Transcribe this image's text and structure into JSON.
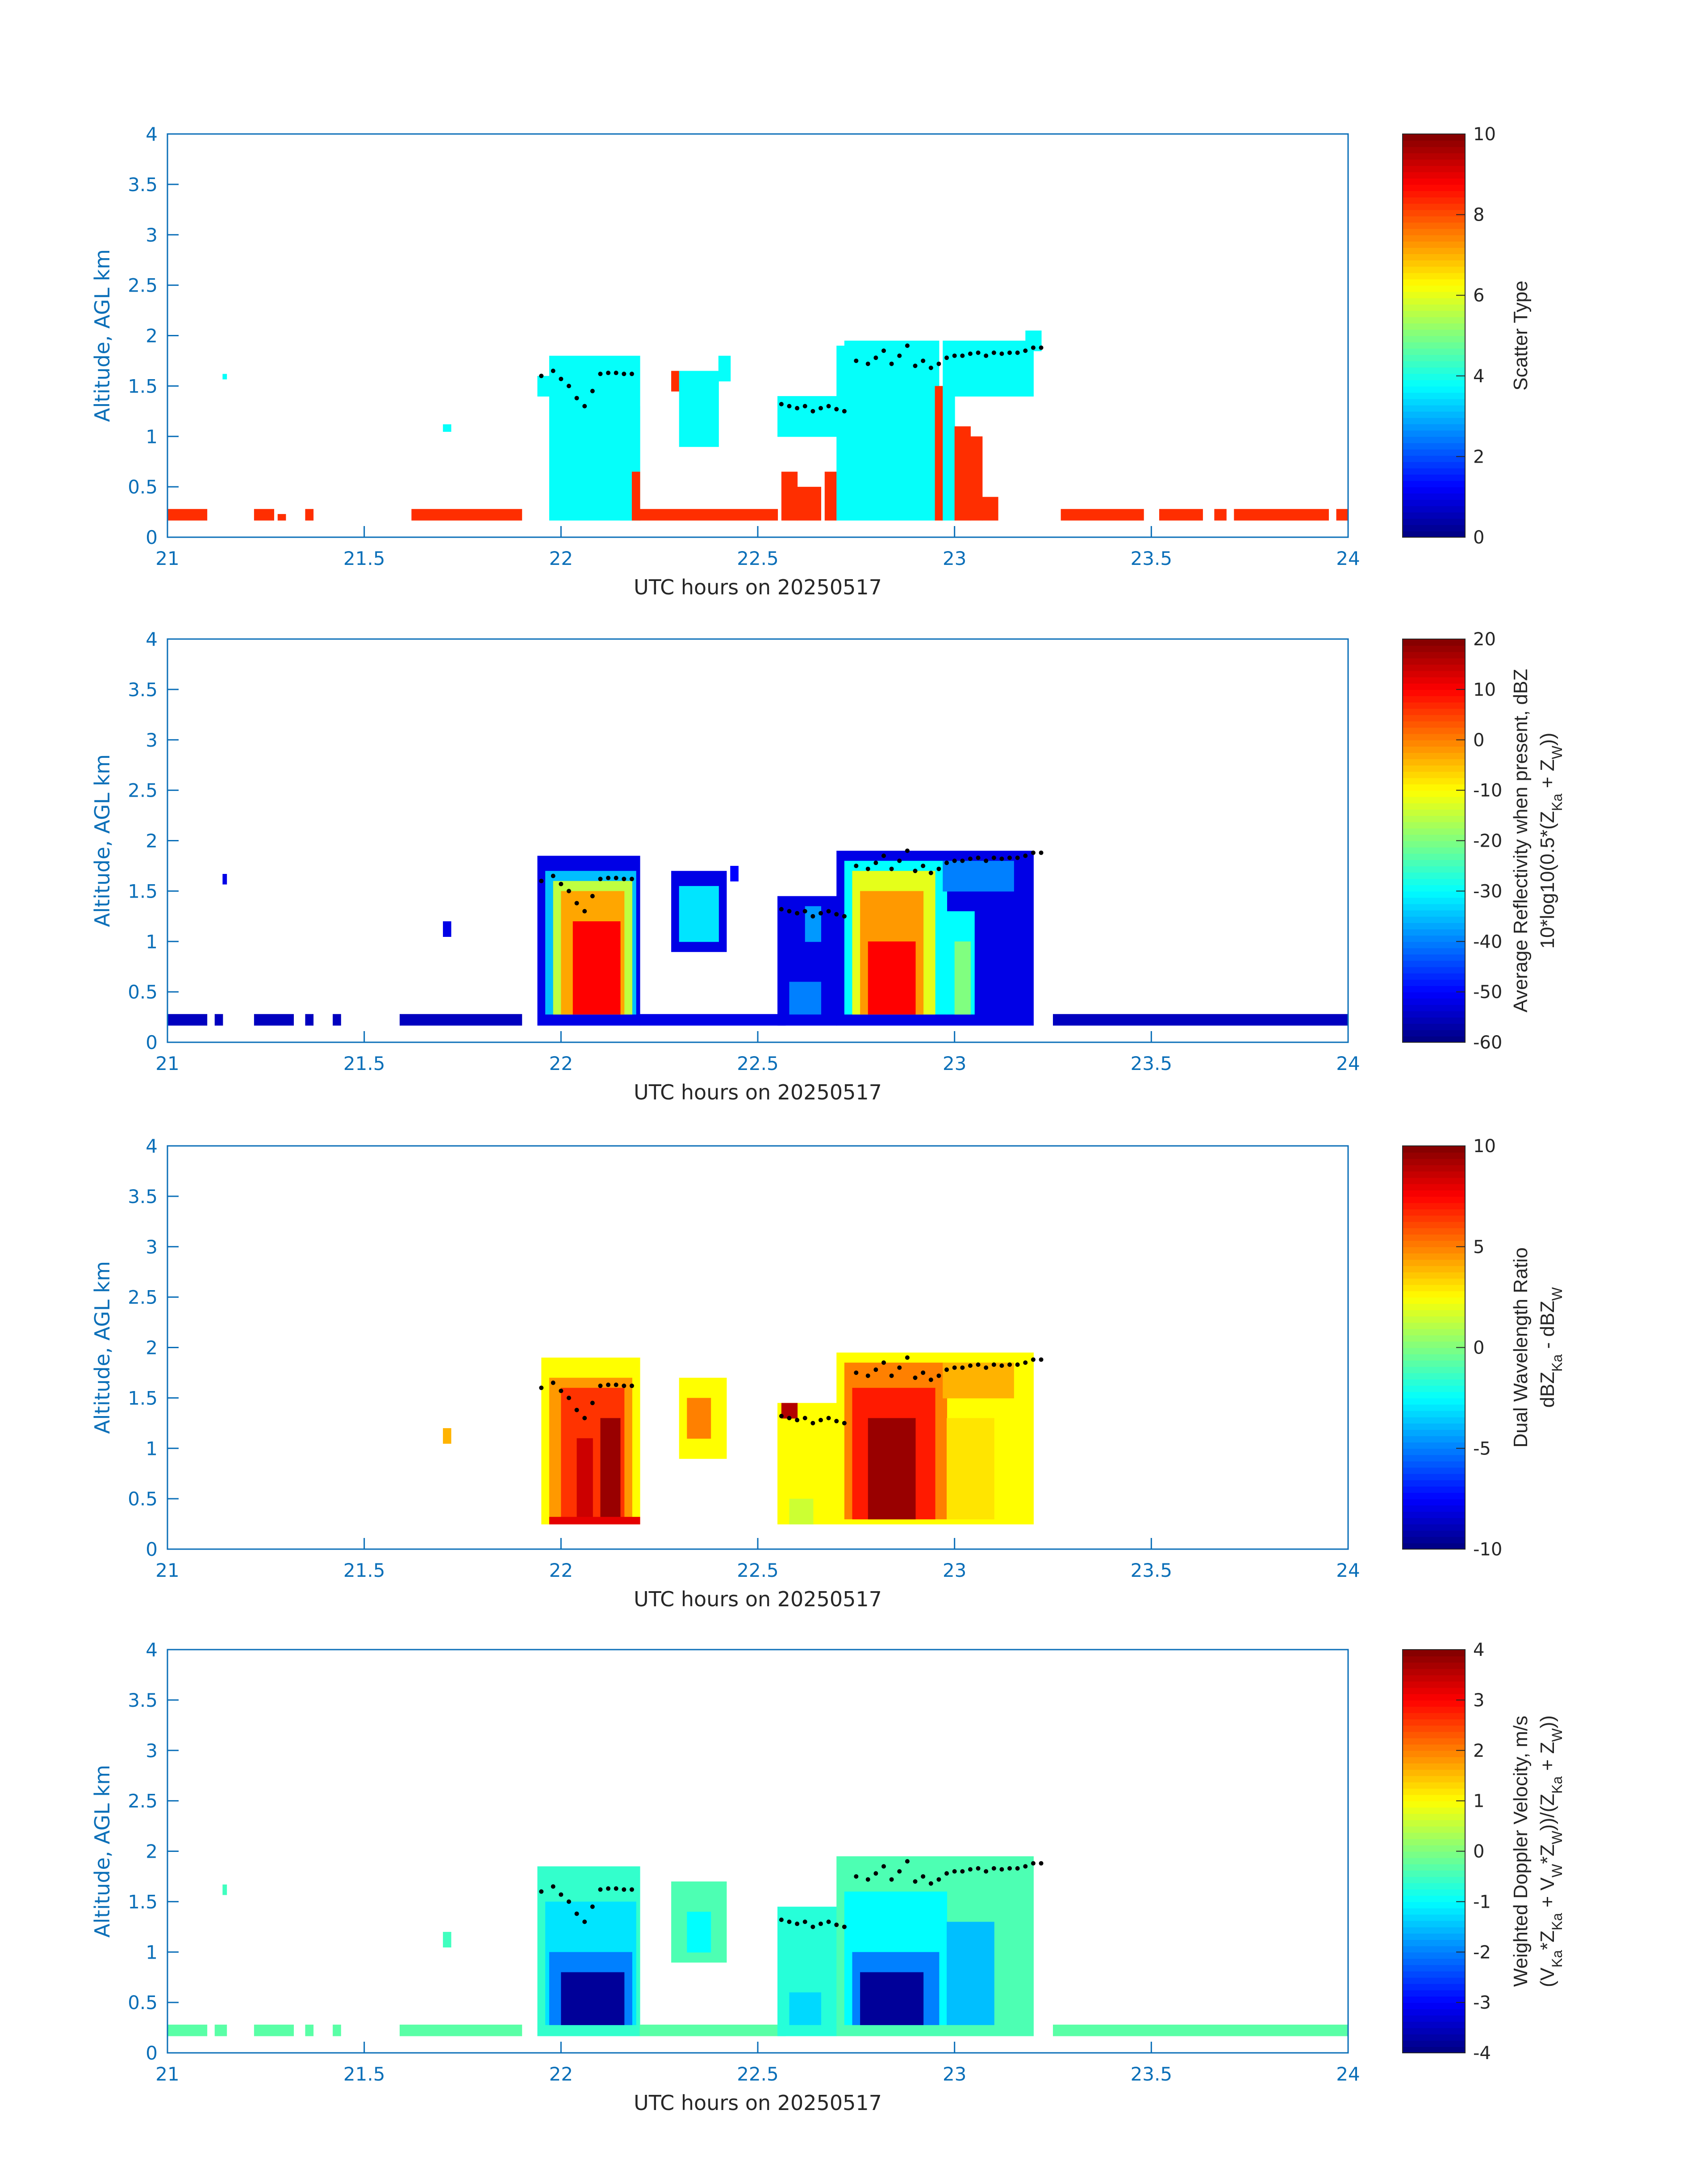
{
  "colors": {
    "axis": "#0b6fb8",
    "text": "#262626",
    "dots": "#000000"
  },
  "chart_data": [
    {
      "type": "heatmap",
      "title": "",
      "xlabel": "UTC hours on 20250517",
      "ylabel": "Altitude, AGL km",
      "xlim": [
        21,
        24
      ],
      "ylim": [
        0,
        4
      ],
      "xticks": [
        "21",
        "21.5",
        "22",
        "22.5",
        "23",
        "23.5",
        "24"
      ],
      "yticks": [
        "0",
        "0.5",
        "1",
        "1.5",
        "2",
        "2.5",
        "3",
        "3.5",
        "4"
      ],
      "colorbar": {
        "range": [
          0,
          10
        ],
        "ticks": [
          "0",
          "2",
          "4",
          "6",
          "8",
          "10"
        ],
        "label": [
          [
            {
              "t": "Scatter Type"
            }
          ]
        ]
      },
      "blocks_format": "[t_start_hr, t_end_hr, alt_bottom_km, alt_top_km, value]",
      "blocks": [
        [
          21.0,
          21.1,
          0.17,
          0.28,
          8.3
        ],
        [
          21.22,
          21.27,
          0.17,
          0.28,
          8.3
        ],
        [
          21.28,
          21.3,
          0.17,
          0.23,
          8.3
        ],
        [
          21.35,
          21.37,
          0.17,
          0.28,
          8.3
        ],
        [
          21.62,
          21.9,
          0.17,
          0.28,
          8.3
        ],
        [
          21.14,
          21.15,
          1.57,
          1.62,
          3.8
        ],
        [
          21.7,
          21.72,
          1.05,
          1.12,
          3.8
        ],
        [
          21.94,
          21.97,
          1.4,
          1.6,
          3.8
        ],
        [
          21.97,
          22.2,
          0.17,
          1.8,
          3.8
        ],
        [
          22.15,
          22.2,
          0.17,
          1.3,
          3.8
        ],
        [
          22.18,
          22.2,
          0.17,
          0.65,
          8.3
        ],
        [
          22.2,
          22.55,
          0.17,
          0.28,
          8.3
        ],
        [
          22.28,
          22.32,
          1.45,
          1.65,
          8.3
        ],
        [
          22.3,
          22.4,
          0.9,
          1.65,
          3.8
        ],
        [
          22.4,
          22.43,
          1.55,
          1.8,
          3.8
        ],
        [
          22.55,
          22.72,
          1.0,
          1.4,
          3.8
        ],
        [
          22.56,
          22.6,
          0.17,
          0.65,
          8.3
        ],
        [
          22.6,
          22.66,
          0.17,
          0.5,
          8.3
        ],
        [
          22.58,
          22.62,
          0.28,
          0.45,
          8.3
        ],
        [
          22.67,
          22.7,
          0.17,
          0.65,
          8.3
        ],
        [
          22.7,
          22.95,
          0.17,
          1.9,
          3.8
        ],
        [
          22.72,
          22.96,
          1.5,
          1.95,
          3.8
        ],
        [
          22.95,
          22.97,
          0.17,
          1.5,
          8.3
        ],
        [
          22.97,
          23.0,
          0.17,
          1.95,
          3.8
        ],
        [
          23.0,
          23.04,
          0.17,
          1.1,
          8.3
        ],
        [
          23.04,
          23.07,
          0.17,
          1.0,
          8.3
        ],
        [
          23.07,
          23.11,
          0.17,
          0.4,
          8.3
        ],
        [
          23.0,
          23.2,
          1.4,
          1.95,
          3.8
        ],
        [
          23.18,
          23.22,
          1.85,
          2.05,
          3.8
        ],
        [
          23.27,
          23.48,
          0.17,
          0.28,
          8.3
        ],
        [
          23.52,
          23.63,
          0.17,
          0.28,
          8.3
        ],
        [
          23.66,
          23.69,
          0.17,
          0.28,
          8.3
        ],
        [
          23.71,
          23.95,
          0.17,
          0.28,
          8.3
        ],
        [
          23.97,
          24.0,
          0.17,
          0.28,
          8.3
        ]
      ]
    },
    {
      "type": "heatmap",
      "xlabel": "UTC hours on 20250517",
      "ylabel": "Altitude, AGL km",
      "xlim": [
        21,
        24
      ],
      "ylim": [
        0,
        4
      ],
      "xticks": [
        "21",
        "21.5",
        "22",
        "22.5",
        "23",
        "23.5",
        "24"
      ],
      "yticks": [
        "0",
        "0.5",
        "1",
        "1.5",
        "2",
        "2.5",
        "3",
        "3.5",
        "4"
      ],
      "colorbar": {
        "range": [
          -60,
          20
        ],
        "ticks": [
          "-60",
          "-50",
          "-40",
          "-30",
          "-20",
          "-10",
          "0",
          "10",
          "20"
        ],
        "label": [
          [
            {
              "t": "Average Reflectivity when present, dBZ"
            }
          ],
          [
            {
              "t": "10*log10(0.5*(Z"
            },
            {
              "t": "Ka",
              "sub": true
            },
            {
              "t": " + Z"
            },
            {
              "t": "W",
              "sub": true
            },
            {
              "t": "))"
            }
          ]
        ]
      },
      "blocks_format": "[t_start_hr, t_end_hr, alt_bottom_km, alt_top_km, value]",
      "blocks": [
        [
          21.0,
          21.1,
          0.17,
          0.28,
          -55
        ],
        [
          21.12,
          21.14,
          0.17,
          0.28,
          -55
        ],
        [
          21.22,
          21.32,
          0.17,
          0.28,
          -55
        ],
        [
          21.35,
          21.37,
          0.17,
          0.28,
          -55
        ],
        [
          21.42,
          21.44,
          0.17,
          0.28,
          -55
        ],
        [
          21.59,
          21.9,
          0.17,
          0.28,
          -55
        ],
        [
          21.14,
          21.15,
          1.57,
          1.67,
          -52
        ],
        [
          21.7,
          21.72,
          1.05,
          1.2,
          -52
        ],
        [
          21.94,
          22.2,
          0.17,
          1.85,
          -52
        ],
        [
          21.96,
          22.19,
          0.28,
          1.7,
          -35
        ],
        [
          21.98,
          22.18,
          0.28,
          1.6,
          -15
        ],
        [
          22.0,
          22.16,
          0.28,
          1.5,
          -3
        ],
        [
          22.03,
          22.15,
          0.28,
          1.2,
          10
        ],
        [
          22.2,
          22.57,
          0.17,
          0.28,
          -52
        ],
        [
          22.28,
          22.42,
          0.9,
          1.7,
          -52
        ],
        [
          22.3,
          22.4,
          1.0,
          1.55,
          -32
        ],
        [
          22.43,
          22.45,
          1.6,
          1.75,
          -50
        ],
        [
          22.55,
          22.7,
          0.17,
          1.45,
          -52
        ],
        [
          22.58,
          22.66,
          0.28,
          0.6,
          -40
        ],
        [
          22.62,
          22.66,
          1.0,
          1.35,
          -38
        ],
        [
          22.7,
          23.2,
          0.17,
          1.9,
          -52
        ],
        [
          22.72,
          22.98,
          0.28,
          1.8,
          -30
        ],
        [
          22.74,
          22.95,
          0.28,
          1.7,
          -12
        ],
        [
          22.76,
          22.92,
          0.28,
          1.5,
          -2
        ],
        [
          22.78,
          22.9,
          0.28,
          1.0,
          10
        ],
        [
          22.98,
          23.05,
          0.28,
          1.3,
          -30
        ],
        [
          23.0,
          23.04,
          0.28,
          1.0,
          -20
        ],
        [
          22.97,
          23.15,
          1.5,
          1.8,
          -40
        ],
        [
          23.25,
          24.0,
          0.17,
          0.28,
          -55
        ]
      ]
    },
    {
      "type": "heatmap",
      "xlabel": "UTC hours on 20250517",
      "ylabel": "Altitude, AGL km",
      "xlim": [
        21,
        24
      ],
      "ylim": [
        0,
        4
      ],
      "xticks": [
        "21",
        "21.5",
        "22",
        "22.5",
        "23",
        "23.5",
        "24"
      ],
      "yticks": [
        "0",
        "0.5",
        "1",
        "1.5",
        "2",
        "2.5",
        "3",
        "3.5",
        "4"
      ],
      "colorbar": {
        "range": [
          -10,
          10
        ],
        "ticks": [
          "-10",
          "-5",
          "0",
          "5",
          "10"
        ],
        "label": [
          [
            {
              "t": "Dual Wavelength Ratio"
            }
          ],
          [
            {
              "t": "dBZ"
            },
            {
              "t": "Ka",
              "sub": true
            },
            {
              "t": " - dBZ"
            },
            {
              "t": "W",
              "sub": true
            }
          ]
        ]
      },
      "blocks_format": "[t_start_hr, t_end_hr, alt_bottom_km, alt_top_km, value]",
      "blocks": [
        [
          21.7,
          21.72,
          1.05,
          1.2,
          4
        ],
        [
          21.95,
          22.2,
          0.25,
          1.9,
          2.5
        ],
        [
          21.97,
          22.18,
          0.3,
          1.7,
          4.5
        ],
        [
          22.0,
          22.16,
          0.3,
          1.6,
          6.5
        ],
        [
          22.1,
          22.15,
          0.3,
          1.3,
          9.5
        ],
        [
          22.04,
          22.08,
          0.3,
          1.1,
          8.5
        ],
        [
          21.97,
          22.2,
          0.25,
          0.32,
          8
        ],
        [
          22.3,
          22.42,
          0.9,
          1.7,
          2.5
        ],
        [
          22.32,
          22.38,
          1.1,
          1.5,
          5
        ],
        [
          22.55,
          22.7,
          0.25,
          1.45,
          2.5
        ],
        [
          22.56,
          22.6,
          1.3,
          1.45,
          9
        ],
        [
          22.58,
          22.64,
          0.25,
          0.5,
          1.5
        ],
        [
          22.7,
          23.2,
          0.25,
          1.95,
          2.5
        ],
        [
          22.72,
          22.98,
          0.3,
          1.85,
          5
        ],
        [
          22.74,
          22.95,
          0.3,
          1.6,
          7
        ],
        [
          22.78,
          22.9,
          0.3,
          1.3,
          9.5
        ],
        [
          22.98,
          23.1,
          0.3,
          1.3,
          3
        ],
        [
          22.97,
          23.15,
          1.5,
          1.85,
          4
        ]
      ]
    },
    {
      "type": "heatmap",
      "xlabel": "UTC hours on 20250517",
      "ylabel": "Altitude, AGL km",
      "xlim": [
        21,
        24
      ],
      "ylim": [
        0,
        4
      ],
      "xticks": [
        "21",
        "21.5",
        "22",
        "22.5",
        "23",
        "23.5",
        "24"
      ],
      "yticks": [
        "0",
        "0.5",
        "1",
        "1.5",
        "2",
        "2.5",
        "3",
        "3.5",
        "4"
      ],
      "colorbar": {
        "range": [
          -4,
          4
        ],
        "ticks": [
          "-4",
          "-3",
          "-2",
          "-1",
          "0",
          "1",
          "2",
          "3",
          "4"
        ],
        "label": [
          [
            {
              "t": "Weighted Doppler Velocity, m/s"
            }
          ],
          [
            {
              "t": "(V"
            },
            {
              "t": "Ka",
              "sub": true
            },
            {
              "t": "*Z"
            },
            {
              "t": "Ka",
              "sub": true
            },
            {
              "t": " + V"
            },
            {
              "t": "W",
              "sub": true
            },
            {
              "t": "*Z"
            },
            {
              "t": "W",
              "sub": true
            },
            {
              "t": "))/(Z"
            },
            {
              "t": "Ka",
              "sub": true
            },
            {
              "t": " + Z"
            },
            {
              "t": "W",
              "sub": true
            },
            {
              "t": "))"
            }
          ]
        ]
      },
      "blocks_format": "[t_start_hr, t_end_hr, alt_bottom_km, alt_top_km, value]",
      "blocks": [
        [
          21.0,
          21.1,
          0.17,
          0.28,
          -0.3
        ],
        [
          21.12,
          21.15,
          0.17,
          0.28,
          -0.3
        ],
        [
          21.22,
          21.32,
          0.17,
          0.28,
          -0.3
        ],
        [
          21.35,
          21.37,
          0.17,
          0.28,
          -0.3
        ],
        [
          21.42,
          21.44,
          0.17,
          0.28,
          -0.3
        ],
        [
          21.59,
          21.9,
          0.17,
          0.28,
          -0.3
        ],
        [
          21.14,
          21.15,
          1.57,
          1.67,
          -0.5
        ],
        [
          21.7,
          21.72,
          1.05,
          1.2,
          -0.5
        ],
        [
          21.94,
          22.2,
          0.17,
          1.85,
          -0.6
        ],
        [
          21.96,
          22.19,
          0.28,
          1.5,
          -1.2
        ],
        [
          21.97,
          22.18,
          0.28,
          1.0,
          -2.0
        ],
        [
          22.0,
          22.16,
          0.28,
          0.8,
          -3.8
        ],
        [
          22.2,
          22.57,
          0.17,
          0.28,
          -0.3
        ],
        [
          22.28,
          22.42,
          0.9,
          1.7,
          -0.4
        ],
        [
          22.32,
          22.38,
          1.0,
          1.4,
          -1.0
        ],
        [
          22.55,
          22.7,
          0.17,
          1.45,
          -0.7
        ],
        [
          22.58,
          22.66,
          0.28,
          0.6,
          -1.3
        ],
        [
          22.7,
          23.2,
          0.17,
          1.95,
          -0.4
        ],
        [
          22.72,
          22.98,
          0.28,
          1.6,
          -1.0
        ],
        [
          22.74,
          22.96,
          0.28,
          1.0,
          -2.0
        ],
        [
          22.76,
          22.92,
          0.28,
          0.8,
          -3.8
        ],
        [
          22.98,
          23.1,
          0.28,
          1.3,
          -1.5
        ],
        [
          23.25,
          24.0,
          0.17,
          0.28,
          -0.3
        ]
      ]
    }
  ],
  "cloud_top_dots": {
    "time_hr": [
      21.95,
      21.98,
      22.0,
      22.02,
      22.04,
      22.06,
      22.08,
      22.1,
      22.12,
      22.14,
      22.16,
      22.18,
      22.56,
      22.58,
      22.6,
      22.62,
      22.64,
      22.66,
      22.68,
      22.7,
      22.72,
      22.75,
      22.78,
      22.8,
      22.82,
      22.84,
      22.86,
      22.88,
      22.9,
      22.92,
      22.94,
      22.96,
      22.98,
      23.0,
      23.02,
      23.04,
      23.06,
      23.08,
      23.1,
      23.12,
      23.14,
      23.16,
      23.18,
      23.2,
      23.22
    ],
    "alt_km": [
      1.6,
      1.65,
      1.57,
      1.5,
      1.38,
      1.3,
      1.45,
      1.62,
      1.63,
      1.63,
      1.62,
      1.62,
      1.32,
      1.3,
      1.28,
      1.3,
      1.25,
      1.28,
      1.3,
      1.27,
      1.25,
      1.75,
      1.72,
      1.78,
      1.85,
      1.72,
      1.8,
      1.9,
      1.7,
      1.75,
      1.68,
      1.72,
      1.78,
      1.8,
      1.8,
      1.82,
      1.83,
      1.8,
      1.83,
      1.82,
      1.83,
      1.83,
      1.85,
      1.88,
      1.88
    ]
  }
}
